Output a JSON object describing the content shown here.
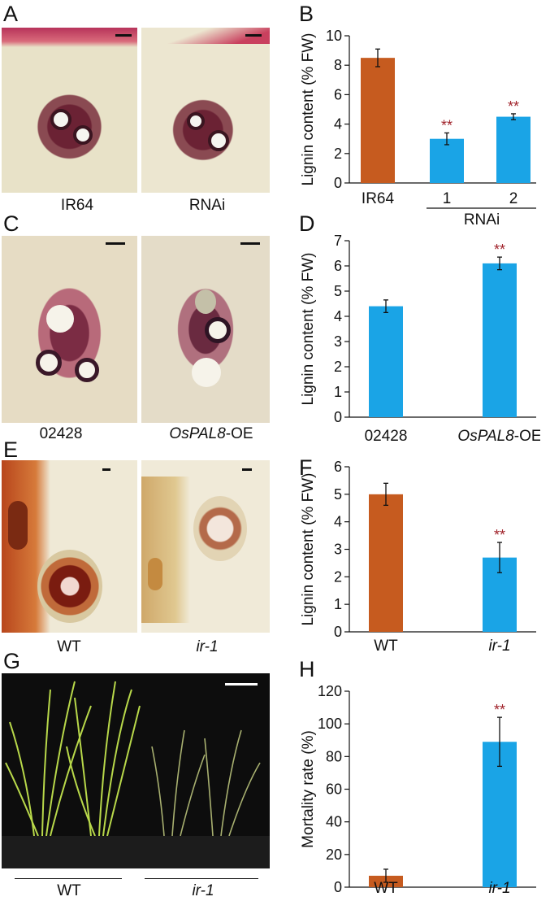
{
  "panels": {
    "A": {
      "label": "A",
      "captions": [
        "IR64",
        "RNAi"
      ]
    },
    "B": {
      "label": "B"
    },
    "C": {
      "label": "C",
      "captions": [
        "02428"
      ],
      "caption_oe_italic": "OsPAL8",
      "caption_oe_suffix": "-OE"
    },
    "D": {
      "label": "D"
    },
    "E": {
      "label": "E",
      "captions": [
        "WT",
        "ir-1"
      ]
    },
    "F": {
      "label": "F"
    },
    "G": {
      "label": "G",
      "captions": [
        "WT",
        "ir-1"
      ]
    },
    "H": {
      "label": "H"
    }
  },
  "colors": {
    "orange": "#c65b1f",
    "blue": "#1aa4e6",
    "star": "#a0222a"
  },
  "chart_data": [
    {
      "id": "B",
      "type": "bar",
      "categories": [
        "IR64",
        "1",
        "2"
      ],
      "group_label": "RNAi",
      "values": [
        8.5,
        3.0,
        4.5
      ],
      "errors": [
        0.6,
        0.4,
        0.2
      ],
      "significance": [
        "",
        "**",
        "**"
      ],
      "bar_colors": [
        "#c65b1f",
        "#1aa4e6",
        "#1aa4e6"
      ],
      "ylabel": "Lignin content (% FW)",
      "ylim": [
        0,
        10
      ],
      "yticks": [
        "0",
        "2",
        "4",
        "6",
        "8",
        "10"
      ]
    },
    {
      "id": "D",
      "type": "bar",
      "categories": [
        "02428",
        "OsPAL8-OE"
      ],
      "values": [
        4.4,
        6.1
      ],
      "errors": [
        0.25,
        0.25
      ],
      "significance": [
        "",
        "**"
      ],
      "bar_colors": [
        "#1aa4e6",
        "#1aa4e6"
      ],
      "ylabel": "Lignin content (% FW)",
      "ylim": [
        0,
        7
      ],
      "yticks": [
        "0",
        "1",
        "2",
        "3",
        "4",
        "5",
        "6",
        "7"
      ]
    },
    {
      "id": "F",
      "type": "bar",
      "categories": [
        "WT",
        "ir-1"
      ],
      "values": [
        5.0,
        2.7
      ],
      "errors": [
        0.4,
        0.55
      ],
      "significance": [
        "",
        "**"
      ],
      "bar_colors": [
        "#c65b1f",
        "#1aa4e6"
      ],
      "ylabel": "Lignin content (% FW)",
      "ylim": [
        0,
        6
      ],
      "yticks": [
        "0",
        "1",
        "2",
        "3",
        "4",
        "5",
        "6"
      ]
    },
    {
      "id": "H",
      "type": "bar",
      "categories": [
        "WT",
        "ir-1"
      ],
      "values": [
        7,
        89
      ],
      "errors": [
        4,
        15
      ],
      "significance": [
        "",
        "**"
      ],
      "bar_colors": [
        "#c65b1f",
        "#1aa4e6"
      ],
      "ylabel": "Mortality rate (%)",
      "ylim": [
        0,
        120
      ],
      "yticks": [
        "0",
        "20",
        "40",
        "60",
        "80",
        "100",
        "120"
      ]
    }
  ]
}
